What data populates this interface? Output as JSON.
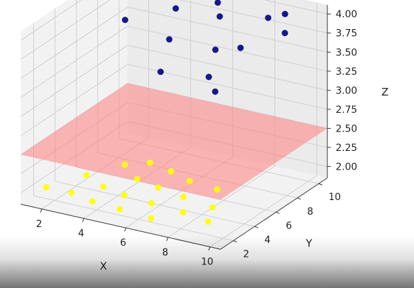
{
  "chart_data": {
    "type": "scatter",
    "title": "",
    "xlabel": "X",
    "ylabel": "Y",
    "zlabel": "Z",
    "xlim": [
      1,
      10.5
    ],
    "ylim": [
      0.8,
      10.8
    ],
    "zlim": [
      1.85,
      4.12
    ],
    "x_ticks": [
      2,
      4,
      6,
      8,
      10
    ],
    "y_ticks": [
      2,
      4,
      6,
      8,
      10
    ],
    "z_ticks": [
      "2.00",
      "2.25",
      "2.50",
      "2.75",
      "3.00",
      "3.25",
      "3.50",
      "3.75",
      "4.00"
    ],
    "grid": true,
    "plane": {
      "z": 2.5,
      "color": "#ff8080",
      "opacity": 0.55
    },
    "series": [
      {
        "color": "#ffff00",
        "points": [
          [
            1.6,
            2.0,
            2.0
          ],
          [
            2.4,
            4.2,
            2.0
          ],
          [
            3.2,
            6.2,
            2.0
          ],
          [
            4.0,
            7.0,
            2.0
          ],
          [
            2.8,
            2.0,
            2.0
          ],
          [
            3.6,
            3.4,
            2.0
          ],
          [
            4.4,
            5.0,
            2.0
          ],
          [
            5.2,
            6.6,
            2.0
          ],
          [
            4.0,
            1.6,
            2.0
          ],
          [
            4.8,
            3.0,
            2.0
          ],
          [
            5.6,
            4.6,
            2.0
          ],
          [
            6.4,
            6.0,
            2.0
          ],
          [
            5.4,
            1.4,
            2.0
          ],
          [
            6.2,
            2.8,
            2.0
          ],
          [
            7.0,
            4.2,
            2.0
          ],
          [
            7.8,
            5.8,
            2.0
          ],
          [
            7.0,
            1.2,
            2.0
          ],
          [
            7.8,
            2.6,
            2.0
          ],
          [
            8.6,
            3.8,
            2.0
          ],
          [
            9.2,
            2.2,
            2.0
          ]
        ]
      },
      {
        "color": "#000080",
        "points": [
          [
            1.2,
            9.6,
            4.0
          ],
          [
            1.6,
            9.2,
            3.85
          ],
          [
            2.0,
            8.6,
            3.6
          ],
          [
            4.0,
            9.4,
            3.8
          ],
          [
            4.2,
            8.4,
            3.5
          ],
          [
            4.4,
            7.2,
            3.2
          ],
          [
            6.0,
            9.4,
            4.0
          ],
          [
            6.4,
            8.8,
            3.9
          ],
          [
            6.8,
            7.6,
            3.6
          ],
          [
            7.4,
            6.4,
            3.2
          ],
          [
            7.2,
            6.2,
            3.4
          ],
          [
            8.0,
            7.6,
            3.7
          ],
          [
            8.6,
            9.0,
            4.0
          ],
          [
            9.2,
            9.4,
            4.05
          ],
          [
            9.6,
            8.6,
            3.9
          ]
        ]
      }
    ]
  }
}
